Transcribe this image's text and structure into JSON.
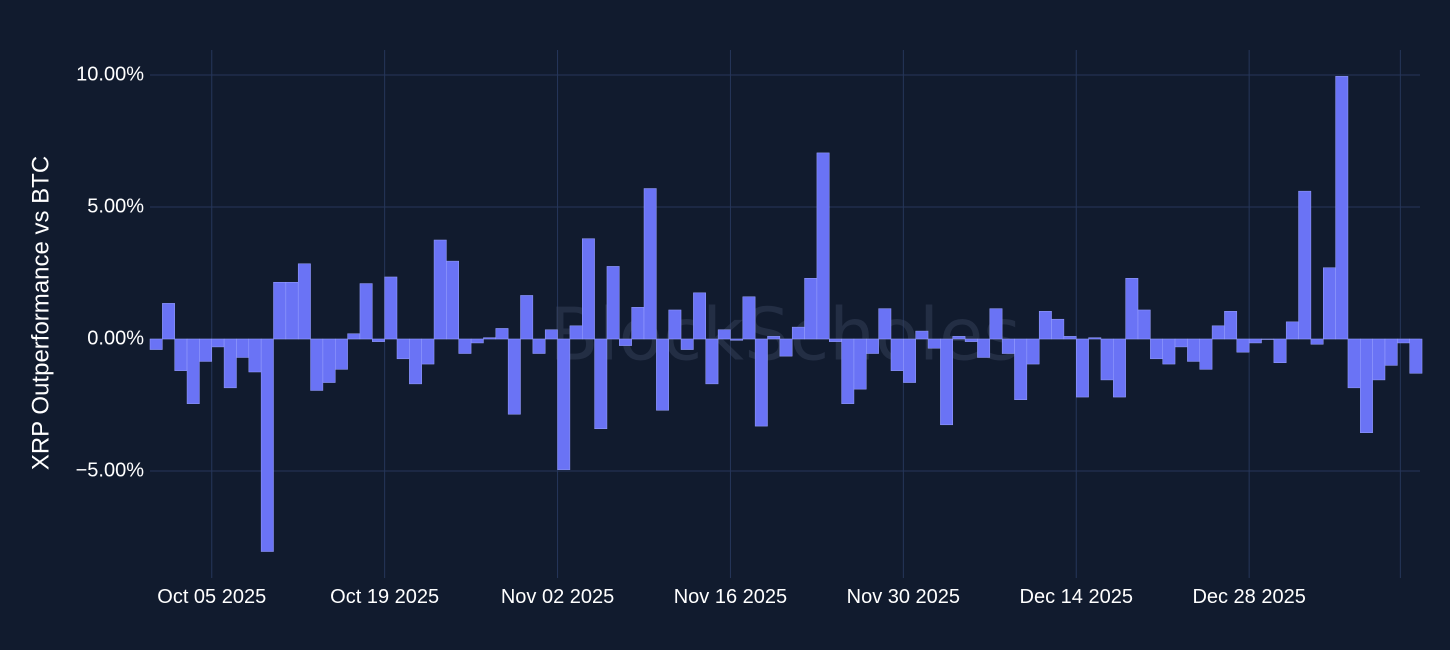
{
  "chart_data": {
    "type": "bar",
    "ylabel": "XRP Outperformance vs BTC",
    "xlabel": "",
    "watermark": "BlockScholes",
    "start_date": "2025-09-30",
    "x_tick_labels": [
      "Oct 05 2025",
      "Oct 19 2025",
      "Nov 02 2025",
      "Nov 16 2025",
      "Nov 30 2025",
      "Dec 14 2025",
      "Dec 28 2025"
    ],
    "x_tick_dates": [
      "2025-10-05",
      "2025-10-19",
      "2025-11-02",
      "2025-11-16",
      "2025-11-30",
      "2025-12-14",
      "2025-12-28"
    ],
    "y_ticks": [
      10,
      5,
      0,
      -5
    ],
    "y_tick_labels": [
      "10.00%",
      "5.00%",
      "0.00%",
      "−5.00%"
    ],
    "ylim": [
      -9,
      11
    ],
    "grid": true,
    "bar_color": "#6a73f5",
    "values": [
      -0.4,
      1.35,
      -1.2,
      -2.45,
      -0.85,
      -0.3,
      -1.85,
      -0.7,
      -1.25,
      -8.05,
      2.15,
      2.15,
      2.85,
      -1.95,
      -1.65,
      -1.15,
      0.2,
      2.1,
      -0.1,
      2.35,
      -0.75,
      -1.7,
      -0.95,
      3.75,
      2.95,
      -0.55,
      -0.15,
      0.05,
      0.4,
      -2.85,
      1.65,
      -0.55,
      0.35,
      -4.95,
      0.5,
      3.8,
      -3.4,
      2.75,
      -0.25,
      1.2,
      5.7,
      -2.7,
      1.1,
      -0.4,
      1.75,
      -1.7,
      0.35,
      -0.05,
      1.6,
      -3.3,
      0.1,
      -0.65,
      0.45,
      2.3,
      7.05,
      -0.1,
      -2.45,
      -1.9,
      -0.55,
      1.15,
      -1.2,
      -1.65,
      0.3,
      -0.35,
      -3.25,
      0.1,
      -0.1,
      -0.7,
      1.15,
      -0.55,
      -2.3,
      -0.95,
      1.05,
      0.75,
      0.1,
      -2.2,
      0.05,
      -1.55,
      -2.2,
      2.3,
      1.1,
      -0.75,
      -0.95,
      -0.3,
      -0.85,
      -1.15,
      0.5,
      1.05,
      -0.5,
      -0.15,
      0.0,
      -0.9,
      0.65,
      5.6,
      -0.2,
      2.7,
      9.95,
      -1.85,
      -3.55,
      -1.55,
      -1.0,
      -0.15,
      -1.3
    ]
  }
}
